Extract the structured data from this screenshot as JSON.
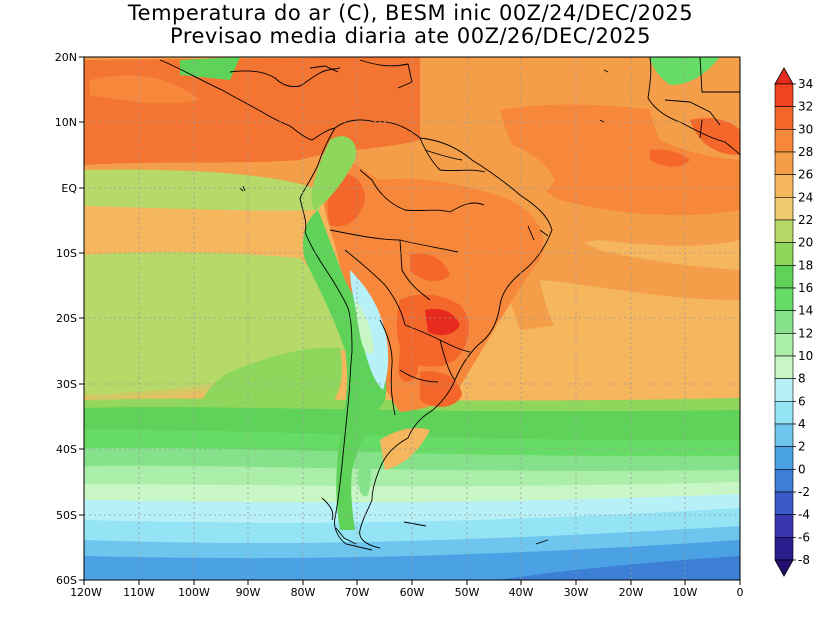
{
  "title": {
    "line1": "Temperatura do ar (C), BESM inic 00Z/24/DEC/2025",
    "line2": "Previsao media diaria ate 00Z/26/DEC/2025"
  },
  "map": {
    "lat_labels": [
      "20N",
      "10N",
      "EQ",
      "10S",
      "20S",
      "30S",
      "40S",
      "50S",
      "60S"
    ],
    "lon_labels": [
      "120W",
      "110W",
      "100W",
      "90W",
      "80W",
      "70W",
      "60W",
      "50W",
      "40W",
      "30W",
      "20W",
      "10W",
      "0"
    ]
  },
  "colorbar": {
    "labels": [
      "34",
      "32",
      "30",
      "28",
      "26",
      "24",
      "22",
      "20",
      "18",
      "16",
      "14",
      "12",
      "10",
      "8",
      "6",
      "4",
      "2",
      "0",
      "-2",
      "-4",
      "-6",
      "-8"
    ],
    "colors": [
      "#e62a1e",
      "#f0441e",
      "#f4662a",
      "#f7873a",
      "#f49e4a",
      "#f5b65e",
      "#efca6e",
      "#b6d96a",
      "#8fd65c",
      "#5fd25a",
      "#66dc66",
      "#86e28a",
      "#aaeeaa",
      "#c8f6c4",
      "#b8f0f8",
      "#94e4f6",
      "#6ec6ee",
      "#4aa2e4",
      "#3c7fd4",
      "#3c5ac8",
      "#3a36b0",
      "#2a1c8c",
      "#220e6e"
    ]
  }
}
